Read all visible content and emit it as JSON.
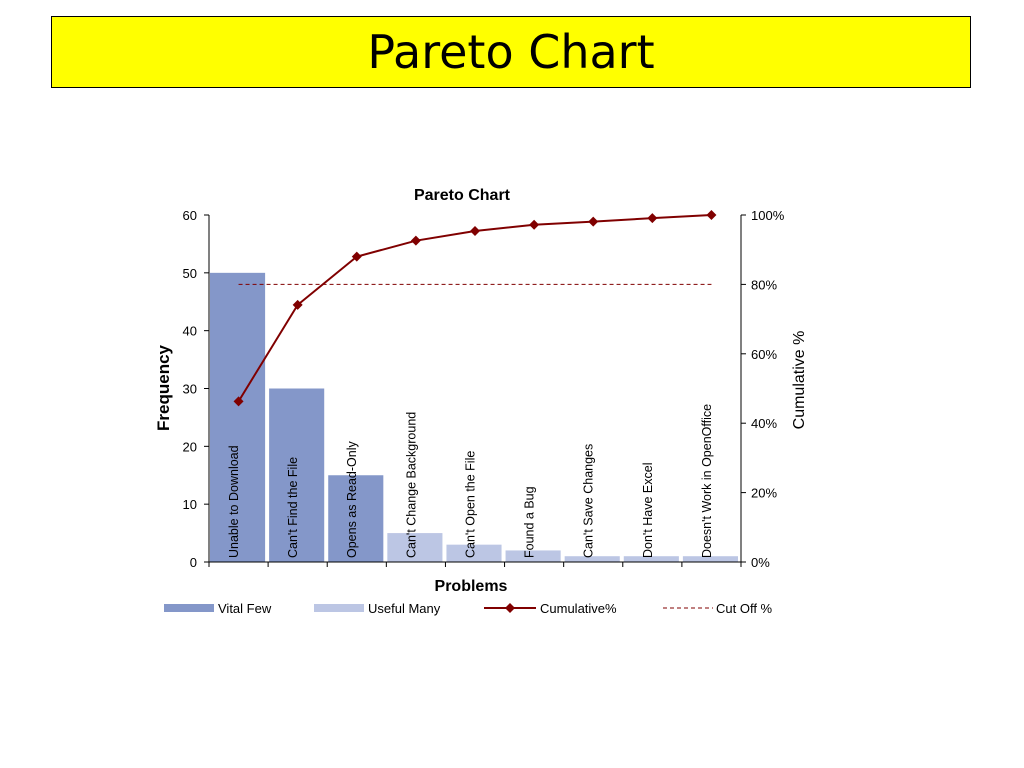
{
  "slide": {
    "title": "Pareto Chart"
  },
  "chart_data": {
    "type": "bar",
    "title": "Pareto Chart",
    "xlabel": "Problems",
    "ylabel": "Frequency",
    "y2label": "Cumulative %",
    "ylim": [
      0,
      60
    ],
    "y2lim": [
      0,
      100
    ],
    "yticks": [
      "0",
      "10",
      "20",
      "30",
      "40",
      "50",
      "60"
    ],
    "y2ticks": [
      "0%",
      "20%",
      "40%",
      "60%",
      "80%",
      "100%"
    ],
    "categories": [
      "Unable to Download",
      "Can't Find the File",
      "Opens as Read-Only",
      "Can't Change Background",
      "Can't Open the File",
      "Found a Bug",
      "Can't Save Changes",
      "Don't Have Excel",
      "Doesn't Work in OpenOffice"
    ],
    "series": [
      {
        "name": "Vital Few",
        "kind": "bar",
        "color": "#8497c9",
        "values": [
          50,
          30,
          15,
          null,
          null,
          null,
          null,
          null,
          null
        ]
      },
      {
        "name": "Useful Many",
        "kind": "bar",
        "color": "#bcc6e4",
        "values": [
          null,
          null,
          null,
          5,
          3,
          2,
          1,
          1,
          1
        ]
      },
      {
        "name": "Cumulative%",
        "kind": "line",
        "axis": "right",
        "color": "#800000",
        "values": [
          46.3,
          74.1,
          88.0,
          92.6,
          95.4,
          97.2,
          98.1,
          99.1,
          100
        ]
      },
      {
        "name": "Cut Off %",
        "kind": "dashed-line",
        "axis": "right",
        "color": "#800000",
        "values": [
          80,
          80,
          80,
          80,
          80,
          80,
          80,
          80,
          80
        ]
      }
    ],
    "legend_position": "bottom",
    "grid": false
  }
}
